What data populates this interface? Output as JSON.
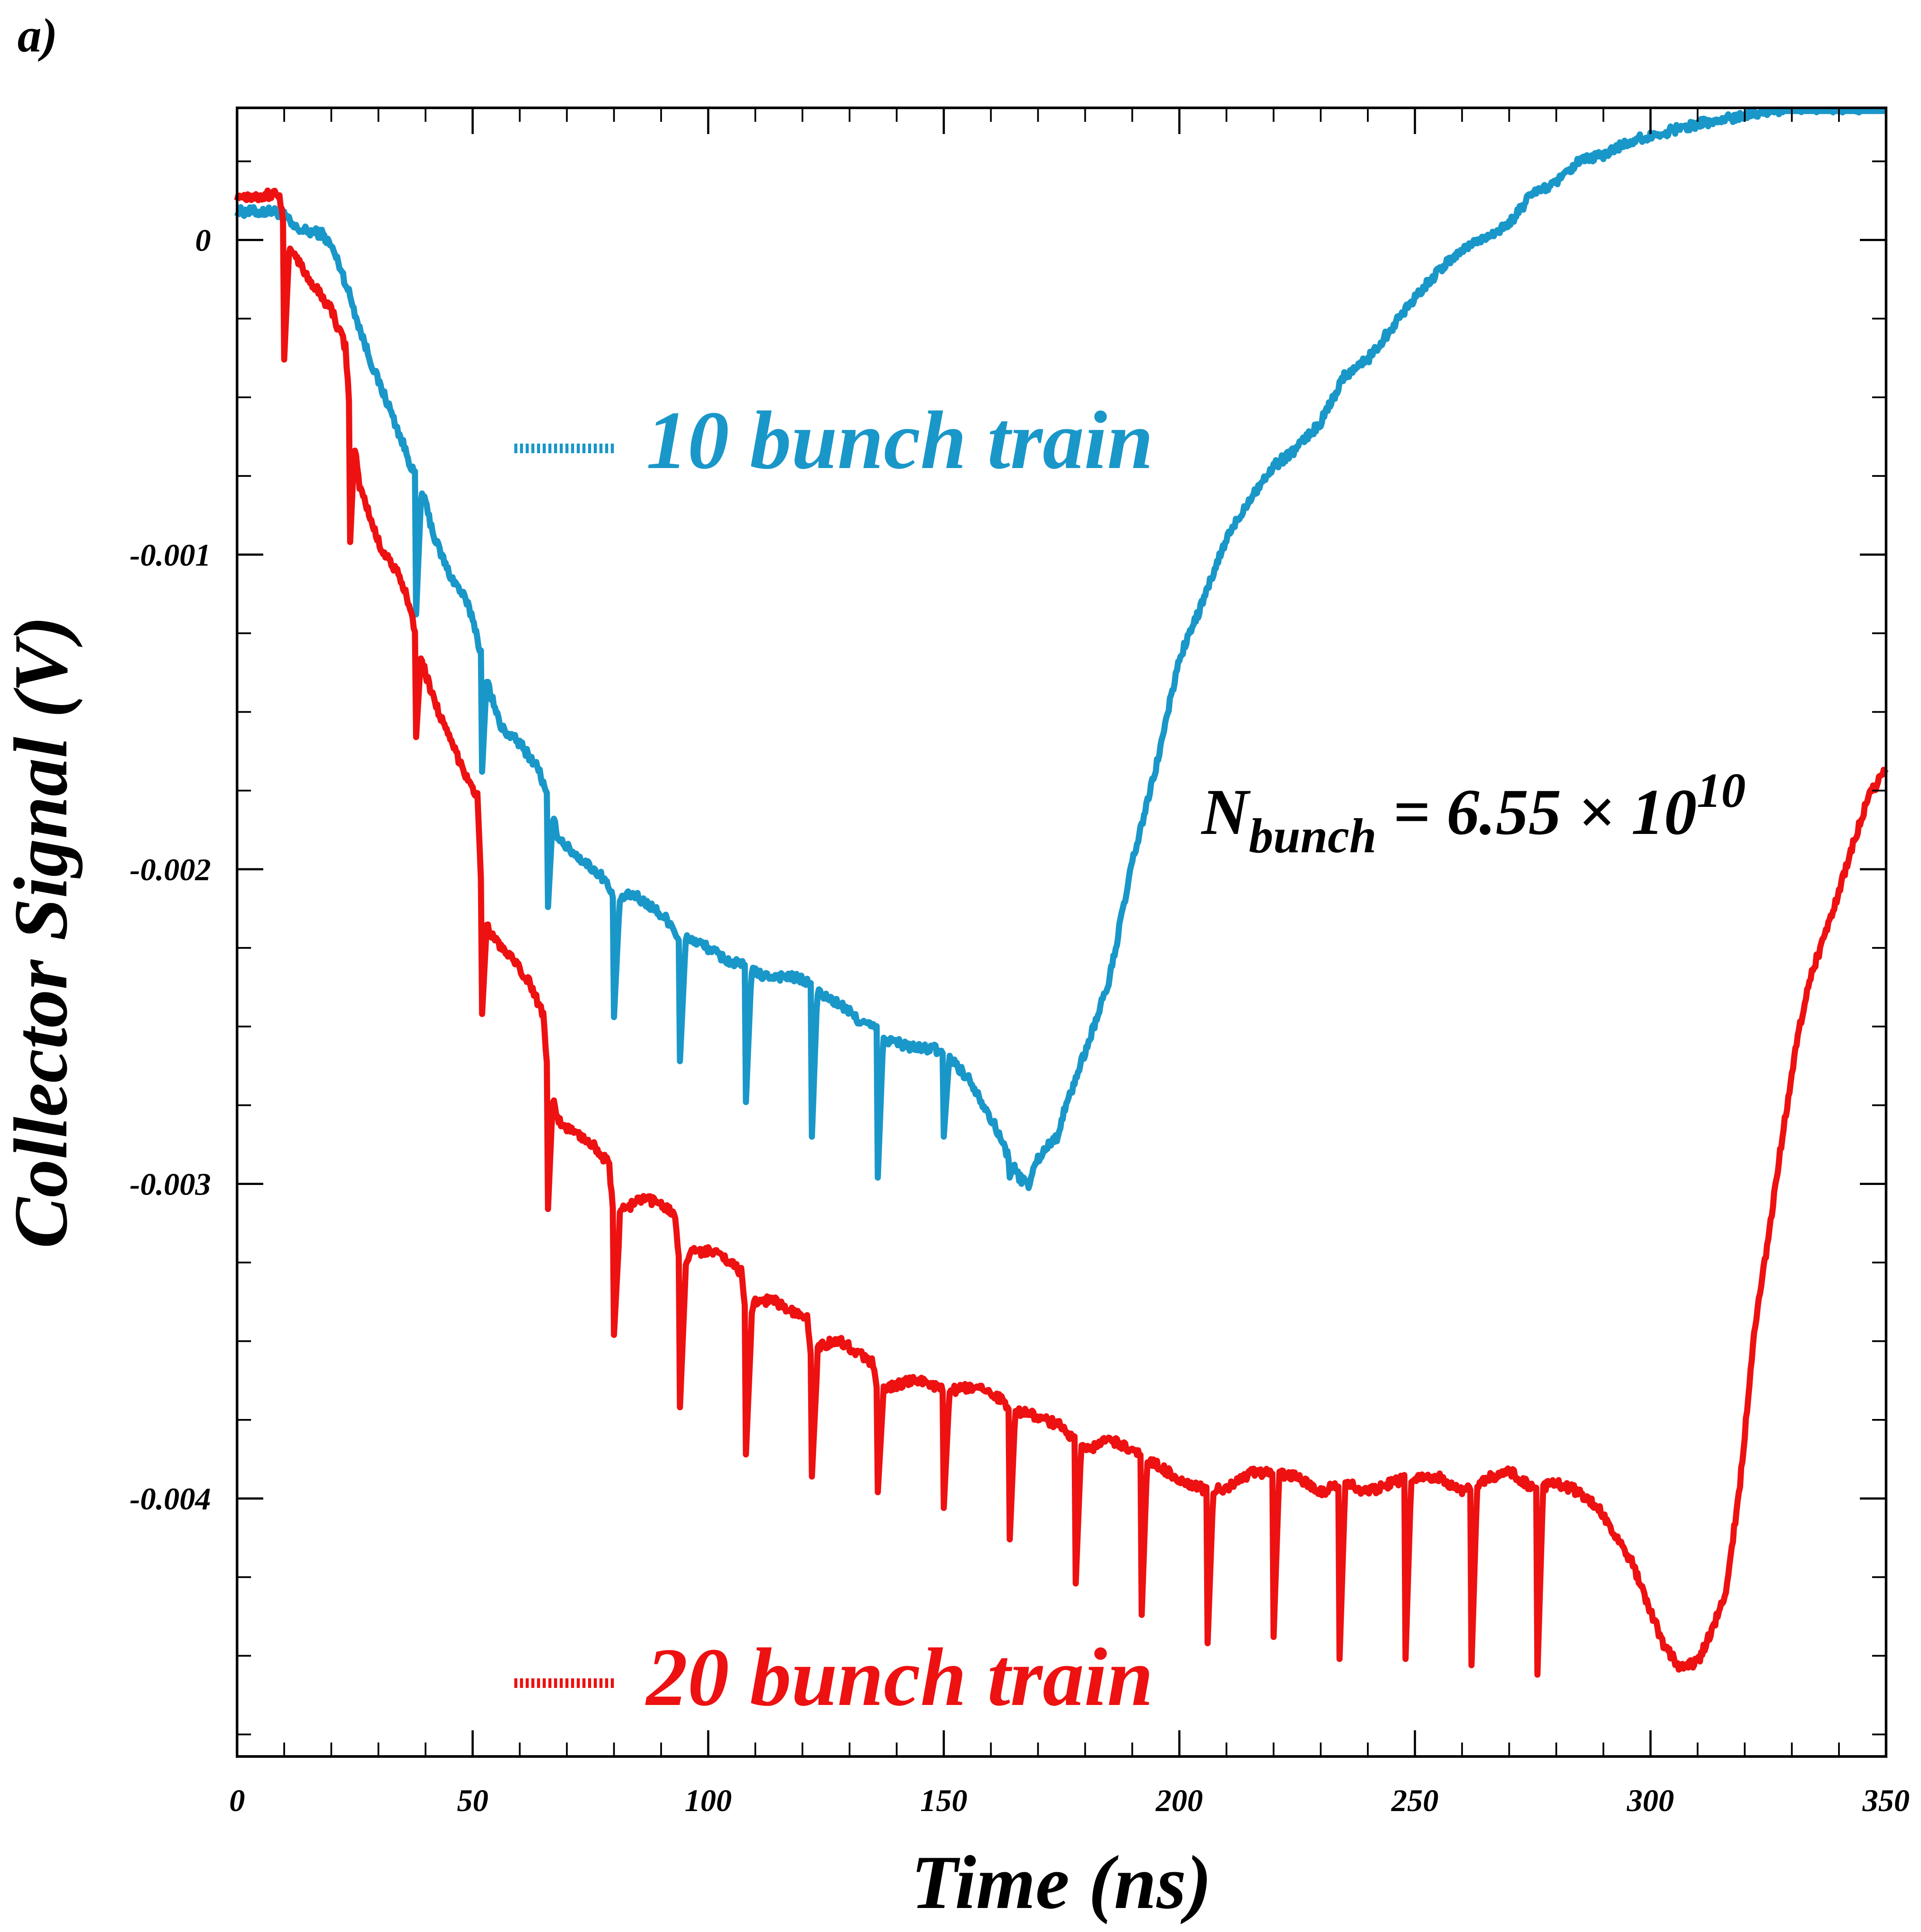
{
  "panel_label": "a)",
  "chart_data": {
    "type": "line",
    "xlabel": "Time (ns)",
    "ylabel": "Collector Signal (V)",
    "xlim": [
      0,
      350
    ],
    "ylim": [
      -0.00482,
      0.00042
    ],
    "x_ticks": [
      0,
      50,
      100,
      150,
      200,
      250,
      300,
      350
    ],
    "x_tick_labels": [
      "0",
      "50",
      "100",
      "150",
      "200",
      "250",
      "300",
      "350"
    ],
    "y_ticks": [
      0,
      -0.001,
      -0.002,
      -0.003,
      -0.004
    ],
    "y_tick_labels": [
      "0",
      "-0.001",
      "-0.002",
      "-0.003",
      "-0.004"
    ],
    "grid": false,
    "legend_placement": "inside, series labels placed next to curves",
    "annotation": {
      "main": "N",
      "subscript": "bunch",
      "equals": " = 6.55 × 10",
      "superscript": "10"
    },
    "series": [
      {
        "name": "10 bunch train",
        "color": "#1a97c9",
        "x": [
          0,
          4,
          8,
          10,
          12,
          14,
          18,
          20,
          22,
          24,
          26,
          28,
          30,
          32,
          34,
          36,
          38,
          40,
          42,
          45,
          48,
          50,
          52,
          54,
          56,
          60,
          64,
          66,
          68,
          70,
          74,
          78,
          80,
          82,
          84,
          88,
          92,
          94,
          96,
          100,
          104,
          108,
          110,
          112,
          116,
          120,
          122,
          124,
          128,
          132,
          136,
          137,
          140,
          144,
          148,
          152,
          156,
          160,
          164,
          166,
          168,
          170,
          172,
          174,
          176,
          180,
          185,
          190,
          195,
          200,
          205,
          210,
          215,
          220,
          225,
          230,
          235,
          240,
          245,
          250,
          255,
          260,
          265,
          270,
          275,
          280,
          285,
          290,
          295,
          300,
          305,
          310,
          315,
          320,
          325,
          330,
          335,
          340,
          345,
          350
        ],
        "y": [
          9e-05,
          9e-05,
          9e-05,
          8e-05,
          4e-05,
          3e-05,
          2e-05,
          -2e-05,
          -9e-05,
          -0.00018,
          -0.00028,
          -0.00037,
          -0.00045,
          -0.00052,
          -0.0006,
          -0.00068,
          -0.00076,
          -0.00084,
          -0.00095,
          -0.00106,
          -0.00113,
          -0.0012,
          -0.00133,
          -0.00145,
          -0.00155,
          -0.0016,
          -0.00168,
          -0.00178,
          -0.00189,
          -0.00193,
          -0.00198,
          -0.00203,
          -0.0021,
          -0.00209,
          -0.00208,
          -0.00212,
          -0.00217,
          -0.00223,
          -0.00222,
          -0.00225,
          -0.00229,
          -0.00231,
          -0.00233,
          -0.00234,
          -0.00234,
          -0.00235,
          -0.00237,
          -0.0024,
          -0.00243,
          -0.00248,
          -0.00251,
          -0.00254,
          -0.00255,
          -0.00257,
          -0.00257,
          -0.00261,
          -0.00268,
          -0.00279,
          -0.00292,
          -0.00298,
          -0.003,
          -0.00292,
          -0.00288,
          -0.00285,
          -0.00275,
          -0.00258,
          -0.00236,
          -0.00198,
          -0.00168,
          -0.00133,
          -0.00115,
          -0.00095,
          -0.00082,
          -0.00072,
          -0.00066,
          -0.00058,
          -0.00043,
          -0.00038,
          -0.00028,
          -0.00018,
          -0.0001,
          -3e-05,
          1e-05,
          5e-05,
          0.00015,
          0.00018,
          0.00025,
          0.00027,
          0.00031,
          0.00033,
          0.00035,
          0.00037,
          0.00038,
          0.0004,
          0.00041,
          0.00042,
          0.00042,
          0.00042,
          0.00042,
          0.00042
        ],
        "bunch_spikes": [
          {
            "x": 38,
            "y": -0.00119
          },
          {
            "x": 52,
            "y": -0.00169
          },
          {
            "x": 66,
            "y": -0.00212
          },
          {
            "x": 80,
            "y": -0.00247
          },
          {
            "x": 94,
            "y": -0.00261
          },
          {
            "x": 108,
            "y": -0.00274
          },
          {
            "x": 122,
            "y": -0.00285
          },
          {
            "x": 136,
            "y": -0.00298
          },
          {
            "x": 150,
            "y": -0.00285
          },
          {
            "x": 164,
            "y": -0.00298
          }
        ]
      },
      {
        "name": "20 bunch train",
        "color": "#ee1111",
        "x": [
          0,
          5,
          9,
          10,
          12,
          15,
          20,
          23,
          24,
          26,
          30,
          34,
          37,
          38,
          40,
          44,
          48,
          51,
          52,
          54,
          58,
          62,
          65,
          66,
          68,
          72,
          76,
          79,
          80,
          82,
          86,
          90,
          93,
          94,
          96,
          100,
          104,
          107,
          108,
          110,
          114,
          118,
          121,
          122,
          124,
          128,
          132,
          135,
          136,
          140,
          145,
          150,
          155,
          160,
          165,
          170,
          175,
          180,
          185,
          190,
          195,
          200,
          205,
          210,
          215,
          220,
          225,
          230,
          235,
          240,
          245,
          250,
          255,
          260,
          265,
          270,
          275,
          280,
          285,
          290,
          293,
          296,
          300,
          303,
          306,
          308,
          310,
          313,
          316,
          319,
          322,
          325,
          328,
          331,
          334,
          337,
          340,
          343,
          346,
          350
        ],
        "y": [
          0.00014,
          0.00014,
          0.00015,
          2e-05,
          -4e-05,
          -0.00012,
          -0.00022,
          -0.00034,
          -0.00056,
          -0.00078,
          -0.00096,
          -0.00106,
          -0.00117,
          -0.00128,
          -0.00138,
          -0.00155,
          -0.00168,
          -0.00177,
          -0.00212,
          -0.00221,
          -0.00228,
          -0.00236,
          -0.00246,
          -0.00266,
          -0.0028,
          -0.00284,
          -0.00288,
          -0.00294,
          -0.00314,
          -0.00308,
          -0.00305,
          -0.00306,
          -0.0031,
          -0.00328,
          -0.00322,
          -0.00321,
          -0.00324,
          -0.00328,
          -0.00344,
          -0.00337,
          -0.00337,
          -0.00341,
          -0.00343,
          -0.00356,
          -0.00351,
          -0.0035,
          -0.00354,
          -0.00357,
          -0.00366,
          -0.00364,
          -0.00362,
          -0.00366,
          -0.00365,
          -0.00366,
          -0.00372,
          -0.00374,
          -0.00377,
          -0.00385,
          -0.00381,
          -0.00385,
          -0.00389,
          -0.00394,
          -0.00397,
          -0.00397,
          -0.00392,
          -0.00392,
          -0.00393,
          -0.00398,
          -0.00395,
          -0.00398,
          -0.00395,
          -0.00393,
          -0.00393,
          -0.00398,
          -0.00394,
          -0.00391,
          -0.00397,
          -0.00395,
          -0.00398,
          -0.00405,
          -0.00413,
          -0.0042,
          -0.00436,
          -0.00447,
          -0.00453,
          -0.00453,
          -0.00452,
          -0.00442,
          -0.0043,
          -0.00395,
          -0.00348,
          -0.00317,
          -0.00285,
          -0.00255,
          -0.00234,
          -0.00221,
          -0.00207,
          -0.00192,
          -0.00178,
          -0.00168
        ],
        "bunch_spikes": [
          {
            "x": 10,
            "y": -0.00038
          },
          {
            "x": 24,
            "y": -0.00096
          },
          {
            "x": 38,
            "y": -0.00158
          },
          {
            "x": 52,
            "y": -0.00246
          },
          {
            "x": 66,
            "y": -0.00308
          },
          {
            "x": 80,
            "y": -0.00348
          },
          {
            "x": 94,
            "y": -0.00371
          },
          {
            "x": 108,
            "y": -0.00386
          },
          {
            "x": 122,
            "y": -0.00393
          },
          {
            "x": 136,
            "y": -0.00398
          },
          {
            "x": 150,
            "y": -0.00403
          },
          {
            "x": 164,
            "y": -0.00413
          },
          {
            "x": 178,
            "y": -0.00427
          },
          {
            "x": 192,
            "y": -0.00437
          },
          {
            "x": 206,
            "y": -0.00446
          },
          {
            "x": 220,
            "y": -0.00444
          },
          {
            "x": 234,
            "y": -0.00451
          },
          {
            "x": 248,
            "y": -0.00451
          },
          {
            "x": 262,
            "y": -0.00453
          },
          {
            "x": 276,
            "y": -0.00456
          }
        ]
      }
    ]
  }
}
